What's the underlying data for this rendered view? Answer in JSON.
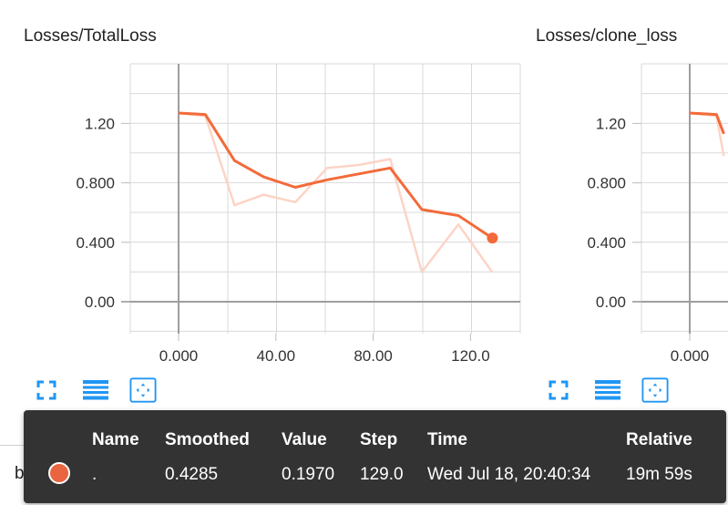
{
  "cards": [
    {
      "title": "Losses/TotalLoss"
    },
    {
      "title": "Losses/clone_loss"
    }
  ],
  "chart_data": [
    {
      "type": "line",
      "title": "Losses/TotalLoss",
      "xlim": [
        -10,
        135
      ],
      "ylim": [
        -0.18,
        1.6
      ],
      "x_ticks": [
        "0.000",
        "40.00",
        "80.00",
        "120.0"
      ],
      "y_ticks": [
        "0.00",
        "0.400",
        "0.800",
        "1.20"
      ],
      "series": [
        {
          "role": "raw",
          "color": "#fcd4c6",
          "x": [
            0,
            11,
            23,
            35,
            48,
            61,
            74,
            87,
            100,
            115,
            129
          ],
          "y": [
            1.27,
            1.25,
            0.65,
            0.72,
            0.67,
            0.9,
            0.92,
            0.96,
            0.2,
            0.52,
            0.197
          ]
        },
        {
          "role": "smoothed",
          "color": "#f26b3a",
          "x": [
            0,
            11,
            23,
            35,
            48,
            61,
            74,
            87,
            100,
            115,
            129
          ],
          "y": [
            1.27,
            1.26,
            0.95,
            0.84,
            0.77,
            0.82,
            0.86,
            0.9,
            0.62,
            0.58,
            0.4285
          ]
        }
      ]
    },
    {
      "type": "line",
      "title": "Losses/clone_loss",
      "xlim": [
        -10,
        135
      ],
      "ylim": [
        -0.18,
        1.6
      ],
      "x_ticks": [
        "0.000"
      ],
      "y_ticks": [
        "0.00",
        "0.400",
        "0.800",
        "1.20"
      ],
      "series": [
        {
          "role": "raw",
          "color": "#fcd4c6",
          "x": [
            0,
            11,
            14
          ],
          "y": [
            1.27,
            1.25,
            0.98
          ]
        },
        {
          "role": "smoothed",
          "color": "#f26b3a",
          "x": [
            0,
            11,
            14
          ],
          "y": [
            1.27,
            1.26,
            1.13
          ]
        }
      ]
    }
  ],
  "tooltip": {
    "headers": {
      "name": "Name",
      "smoothed": "Smoothed",
      "value": "Value",
      "step": "Step",
      "time": "Time",
      "relative": "Relative"
    },
    "row": {
      "name": ".",
      "smoothed": "0.4285",
      "value": "0.1970",
      "step": "129.0",
      "time": "Wed Jul 18, 20:40:34",
      "relative": "19m 59s"
    },
    "run_color": "#e8653f"
  },
  "run_list": {
    "label": "batch"
  },
  "icons": {
    "fullscreen": "fullscreen-icon",
    "data_table": "data-table-icon",
    "fit_domain": "fit-domain-icon"
  },
  "colors": {
    "accent": "#2196f3",
    "tooltip_bg": "#333333"
  }
}
